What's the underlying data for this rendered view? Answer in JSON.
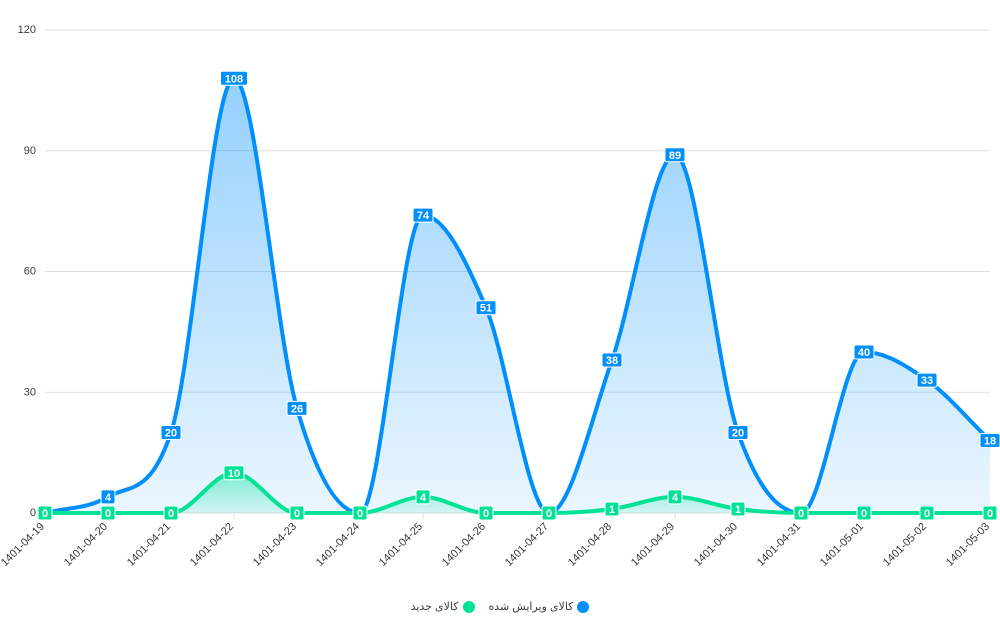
{
  "chart_data": {
    "type": "area",
    "categories": [
      "1401-04-19",
      "1401-04-20",
      "1401-04-21",
      "1401-04-22",
      "1401-04-23",
      "1401-04-24",
      "1401-04-25",
      "1401-04-26",
      "1401-04-27",
      "1401-04-28",
      "1401-04-29",
      "1401-04-30",
      "1401-04-31",
      "1401-05-01",
      "1401-05-02",
      "1401-05-03"
    ],
    "yticks": [
      "0",
      "30",
      "60",
      "90",
      "120"
    ],
    "ylim": [
      0,
      120
    ],
    "series": [
      {
        "name": "کالای ویرایش شده",
        "color": "#008ffb",
        "values": [
          0,
          4,
          20,
          108,
          26,
          0,
          74,
          51,
          0,
          38,
          89,
          20,
          0,
          40,
          33,
          18
        ]
      },
      {
        "name": "کالای جدید",
        "color": "#00e396",
        "values": [
          0,
          0,
          0,
          10,
          0,
          0,
          4,
          0,
          0,
          1,
          4,
          1,
          0,
          0,
          0,
          0
        ]
      }
    ],
    "legend_position": "bottom",
    "grid": true
  }
}
